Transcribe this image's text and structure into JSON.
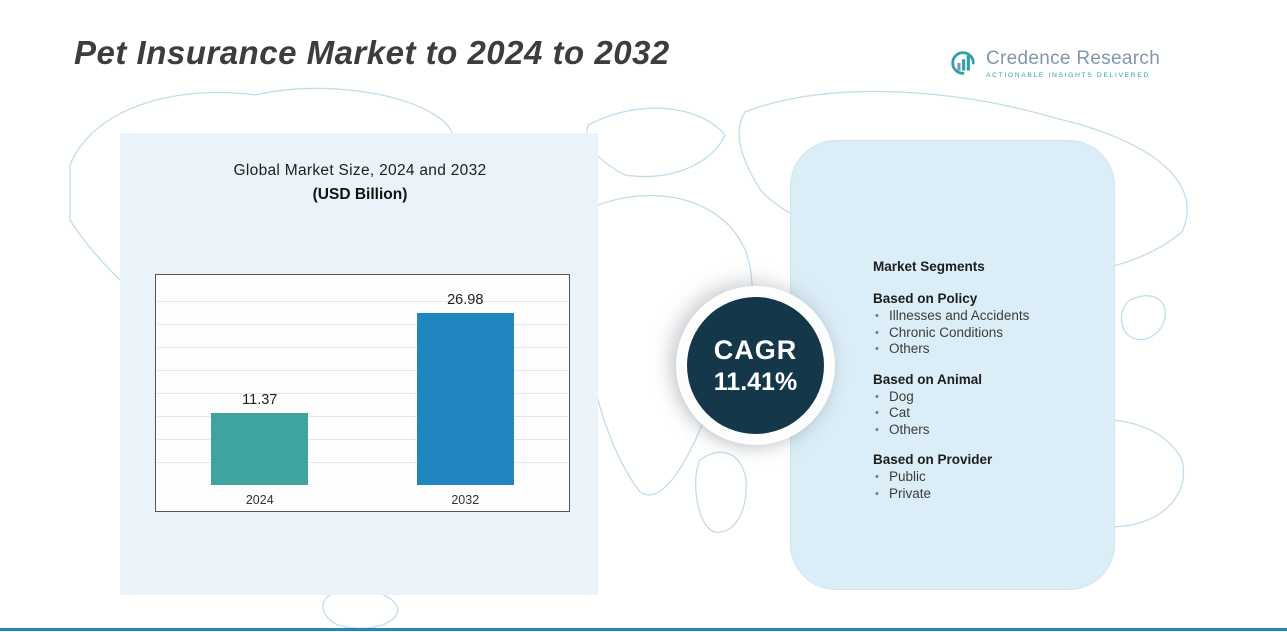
{
  "page": {
    "title": "Pet Insurance Market to 2024 to 2032"
  },
  "logo": {
    "name": "Credence Research",
    "tagline": "Actionable Insights Delivered"
  },
  "chart_heading": {
    "line1": "Global Market Size, 2024 and 2032",
    "line2": "(USD Billion)"
  },
  "chart_data": {
    "type": "bar",
    "title": "Global Market Size, 2024 and 2032 (USD Billion)",
    "categories": [
      "2024",
      "2032"
    ],
    "values": [
      11.37,
      26.98
    ],
    "value_labels": [
      "11.37",
      "26.98"
    ],
    "xlabel": "",
    "ylabel": "",
    "ylim": [
      0,
      32
    ],
    "grid": true,
    "legend": "none",
    "bar_colors": [
      "#3fa3a0",
      "#1f86c0"
    ]
  },
  "cagr": {
    "label": "CAGR",
    "value": "11.41%"
  },
  "segments": {
    "heading": "Market Segments",
    "groups": [
      {
        "title": "Based on Policy",
        "items": [
          "Illnesses and Accidents",
          "Chronic Conditions",
          "Others"
        ]
      },
      {
        "title": "Based on Animal",
        "items": [
          "Dog",
          "Cat",
          "Others"
        ]
      },
      {
        "title": "Based on Provider",
        "items": [
          "Public",
          "Private"
        ]
      }
    ]
  },
  "colors": {
    "accent_teal": "#3fa3a0",
    "accent_blue": "#1f86c0",
    "cagr_circle": "#14384a",
    "panel_bg": "#dbedf7",
    "left_panel_bg": "#e9f3f9",
    "map_stroke": "#c2dcea",
    "footer_line": "#1f86c0"
  }
}
